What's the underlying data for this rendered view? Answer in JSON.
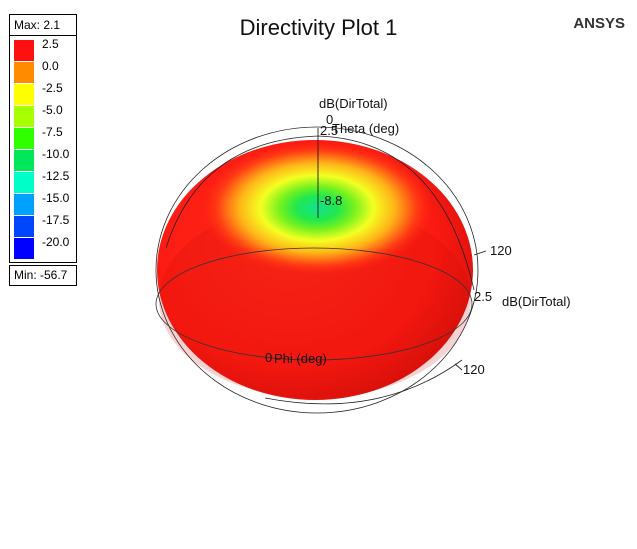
{
  "title": "Directivity Plot 1",
  "brand": "ANSYS",
  "legend": {
    "max_label": "Max: 2.1",
    "min_label": "Min: -56.7",
    "entries": [
      {
        "value": "2.5",
        "color": "#ff1010"
      },
      {
        "value": "0.0",
        "color": "#ff8c00"
      },
      {
        "value": "-2.5",
        "color": "#ffff00"
      },
      {
        "value": "-5.0",
        "color": "#a8ff00"
      },
      {
        "value": "-7.5",
        "color": "#30ff00"
      },
      {
        "value": "-10.0",
        "color": "#00e85a"
      },
      {
        "value": "-12.5",
        "color": "#00ffc8"
      },
      {
        "value": "-15.0",
        "color": "#00a0ff"
      },
      {
        "value": "-17.5",
        "color": "#0046ff"
      },
      {
        "value": "-20.0",
        "color": "#0000ff"
      }
    ]
  },
  "axes": {
    "vertical_quantity": "dB(DirTotal)",
    "vertical_zero": "0",
    "vertical_value": "2.5",
    "theta_label": "Theta (deg)",
    "center_value": "-8.8",
    "right_tick_upper": "120",
    "right_value": "2.5",
    "right_quantity": "dB(DirTotal)",
    "phi_label": "Phi (deg)",
    "phi_zero": "0",
    "right_tick_lower": "120"
  },
  "colors": {
    "surface_main": "#ff1a12",
    "surface_dark": "#d40f0a",
    "ring_yellow": "#ffff30",
    "center_green": "#28e650",
    "center_cyan": "#00ff9c"
  }
}
